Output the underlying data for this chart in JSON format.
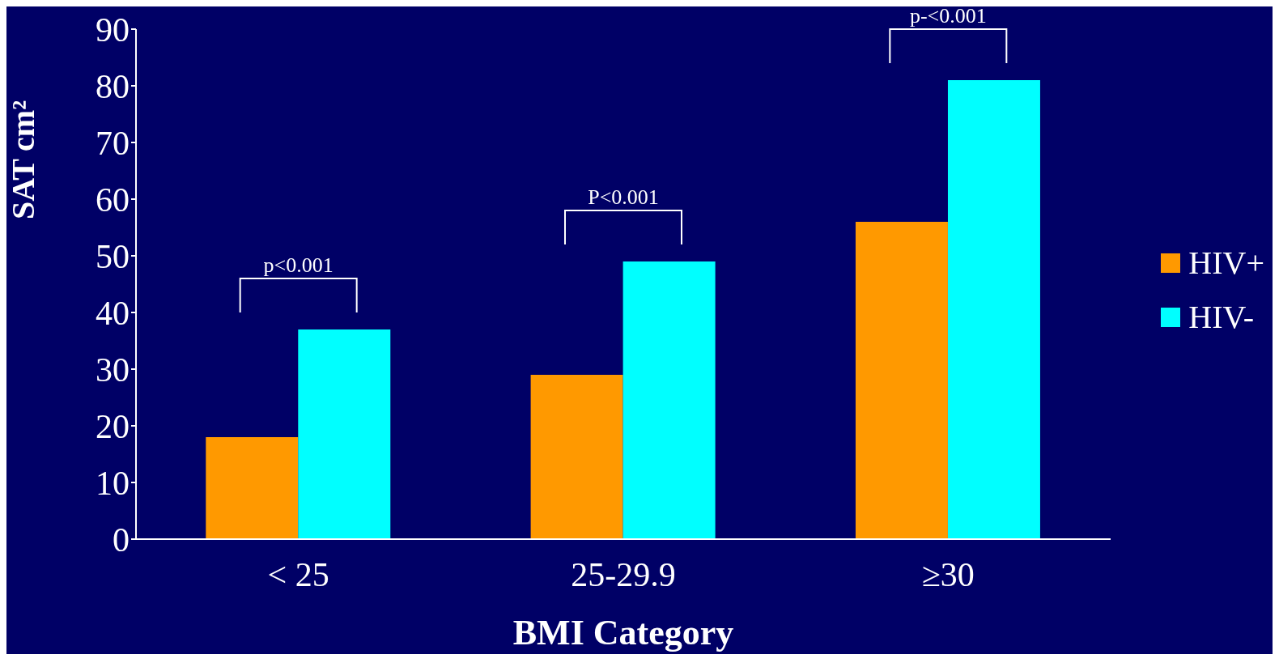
{
  "chart_data": {
    "type": "bar",
    "xlabel": "BMI Category",
    "ylabel": "SAT cm²",
    "categories": [
      "< 25",
      "25-29.9",
      "≥30"
    ],
    "series": [
      {
        "name": "HIV+",
        "color": "#ff9900",
        "values": [
          18,
          29,
          56
        ]
      },
      {
        "name": "HIV-",
        "color": "#00ffff",
        "values": [
          37,
          49,
          81
        ]
      }
    ],
    "ylim": [
      0,
      90
    ],
    "yticks": [
      0,
      10,
      20,
      30,
      40,
      50,
      60,
      70,
      80,
      90
    ],
    "grid": false,
    "legend": "right",
    "annotations": [
      "p<0.001",
      "P<0.001",
      "p-<0.001"
    ]
  }
}
